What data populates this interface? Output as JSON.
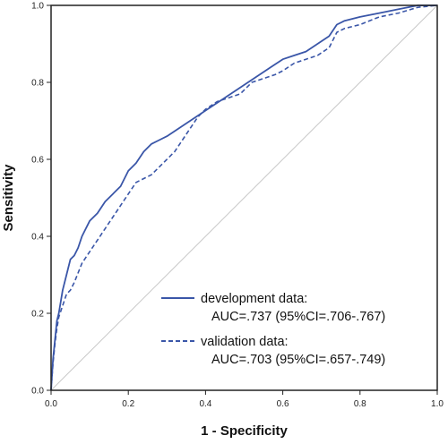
{
  "chart_data": {
    "type": "line",
    "xlabel": "1 - Specificity",
    "ylabel": "Sensitivity",
    "xlim": [
      0,
      1
    ],
    "ylim": [
      0,
      1
    ],
    "x_ticks": [
      "0.0",
      "0.2",
      "0.4",
      "0.6",
      "0.8",
      "1.0"
    ],
    "y_ticks": [
      "0.0",
      "0.2",
      "0.4",
      "0.6",
      "0.8",
      "1.0"
    ],
    "grid": false,
    "legend_position": "bottom-right",
    "colors": {
      "series": "#3a56a8",
      "reference": "#c8c8c8",
      "axes": "#222222"
    },
    "series": [
      {
        "name": "development data:",
        "detail": "AUC=.737 (95%CI=.706-.767)",
        "style": "solid",
        "x": [
          0,
          0.005,
          0.01,
          0.015,
          0.02,
          0.025,
          0.03,
          0.04,
          0.05,
          0.06,
          0.07,
          0.08,
          0.09,
          0.1,
          0.12,
          0.14,
          0.16,
          0.18,
          0.2,
          0.22,
          0.24,
          0.26,
          0.28,
          0.3,
          0.33,
          0.36,
          0.39,
          0.42,
          0.45,
          0.48,
          0.51,
          0.54,
          0.57,
          0.6,
          0.63,
          0.66,
          0.69,
          0.72,
          0.74,
          0.76,
          0.8,
          0.85,
          0.9,
          0.95,
          1.0
        ],
        "y": [
          0,
          0.08,
          0.13,
          0.18,
          0.2,
          0.23,
          0.26,
          0.3,
          0.34,
          0.35,
          0.37,
          0.4,
          0.42,
          0.44,
          0.46,
          0.49,
          0.51,
          0.53,
          0.57,
          0.59,
          0.62,
          0.64,
          0.65,
          0.66,
          0.68,
          0.7,
          0.72,
          0.74,
          0.76,
          0.78,
          0.8,
          0.82,
          0.84,
          0.86,
          0.87,
          0.88,
          0.9,
          0.92,
          0.95,
          0.96,
          0.97,
          0.98,
          0.99,
          1.0,
          1.0
        ]
      },
      {
        "name": "validation data:",
        "detail": "AUC=.703 (95%CI=.657-.749)",
        "style": "dashed",
        "x": [
          0,
          0.005,
          0.01,
          0.015,
          0.02,
          0.03,
          0.04,
          0.05,
          0.06,
          0.08,
          0.1,
          0.12,
          0.14,
          0.16,
          0.18,
          0.2,
          0.22,
          0.24,
          0.26,
          0.28,
          0.3,
          0.32,
          0.34,
          0.36,
          0.38,
          0.4,
          0.43,
          0.46,
          0.49,
          0.52,
          0.55,
          0.58,
          0.6,
          0.63,
          0.66,
          0.69,
          0.72,
          0.74,
          0.76,
          0.8,
          0.85,
          0.9,
          0.95,
          1.0
        ],
        "y": [
          0,
          0.07,
          0.12,
          0.16,
          0.19,
          0.22,
          0.25,
          0.26,
          0.28,
          0.33,
          0.36,
          0.39,
          0.42,
          0.45,
          0.48,
          0.51,
          0.54,
          0.55,
          0.56,
          0.58,
          0.6,
          0.62,
          0.65,
          0.68,
          0.71,
          0.73,
          0.75,
          0.76,
          0.77,
          0.8,
          0.81,
          0.82,
          0.83,
          0.85,
          0.86,
          0.87,
          0.89,
          0.93,
          0.94,
          0.95,
          0.97,
          0.98,
          0.995,
          1.0
        ]
      }
    ]
  }
}
